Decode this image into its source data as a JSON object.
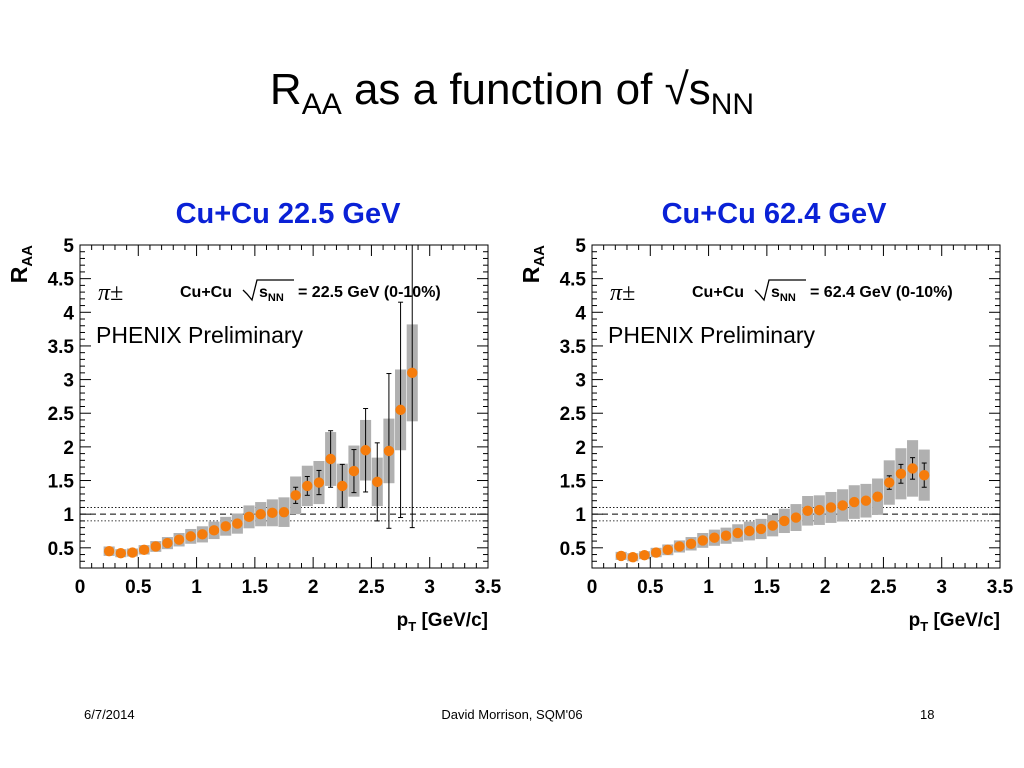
{
  "slide": {
    "title_main": "R",
    "title_sub1": "AA",
    "title_mid": " as a function of √s",
    "title_sub2": "NN"
  },
  "footer": {
    "date": "6/7/2014",
    "author": "David Morrison, SQM'06",
    "page": "18"
  },
  "colors": {
    "panel_title": "#0a21d6",
    "marker": "#f57c0c",
    "syst_band": "#b0b0b0"
  },
  "chart_data": [
    {
      "type": "scatter",
      "title": "Cu+Cu 22.5 GeV",
      "particle": "π±",
      "system_text": "Cu+Cu",
      "energy_text": "= 22.5 GeV (0-10%)",
      "prelim": "PHENIX Preliminary",
      "xlabel_main": "p",
      "xlabel_sub": "T",
      "xlabel_unit": " [GeV/c]",
      "ylabel_main": "R",
      "ylabel_sub": "AA",
      "xlim": [
        0,
        3.5
      ],
      "ylim": [
        0.2,
        5
      ],
      "xticks": [
        "0",
        "0.5",
        "1",
        "1.5",
        "2",
        "2.5",
        "3",
        "3.5"
      ],
      "yticks": [
        "0.5",
        "1",
        "1.5",
        "2",
        "2.5",
        "3",
        "3.5",
        "4",
        "4.5",
        "5"
      ],
      "reference_lines": {
        "dashed": 1.0,
        "dotted": [
          0.9,
          1.1
        ]
      },
      "x": [
        0.25,
        0.35,
        0.45,
        0.55,
        0.65,
        0.75,
        0.85,
        0.95,
        1.05,
        1.15,
        1.25,
        1.35,
        1.45,
        1.55,
        1.65,
        1.75,
        1.85,
        1.95,
        2.05,
        2.15,
        2.25,
        2.35,
        2.45,
        2.55,
        2.65,
        2.75,
        2.85
      ],
      "y": [
        0.45,
        0.42,
        0.43,
        0.47,
        0.52,
        0.57,
        0.62,
        0.67,
        0.7,
        0.76,
        0.82,
        0.86,
        0.96,
        1.0,
        1.02,
        1.03,
        1.28,
        1.42,
        1.47,
        1.82,
        1.42,
        1.64,
        1.95,
        1.48,
        1.94,
        2.55,
        3.1
      ],
      "stat": [
        0.02,
        0.02,
        0.02,
        0.02,
        0.02,
        0.02,
        0.02,
        0.02,
        0.02,
        0.03,
        0.03,
        0.03,
        0.03,
        0.04,
        0.04,
        0.06,
        0.12,
        0.14,
        0.18,
        0.42,
        0.32,
        0.32,
        0.62,
        0.58,
        1.15,
        1.6,
        2.3
      ],
      "syst": [
        0.07,
        0.06,
        0.06,
        0.07,
        0.08,
        0.09,
        0.1,
        0.11,
        0.12,
        0.13,
        0.14,
        0.15,
        0.17,
        0.18,
        0.2,
        0.22,
        0.28,
        0.3,
        0.32,
        0.4,
        0.33,
        0.38,
        0.45,
        0.36,
        0.48,
        0.6,
        0.72
      ]
    },
    {
      "type": "scatter",
      "title": "Cu+Cu 62.4 GeV",
      "particle": "π±",
      "system_text": "Cu+Cu",
      "energy_text": "= 62.4 GeV (0-10%)",
      "prelim": "PHENIX Preliminary",
      "xlabel_main": "p",
      "xlabel_sub": "T",
      "xlabel_unit": " [GeV/c]",
      "ylabel_main": "R",
      "ylabel_sub": "AA",
      "xlim": [
        0,
        3.5
      ],
      "ylim": [
        0.2,
        5
      ],
      "xticks": [
        "0",
        "0.5",
        "1",
        "1.5",
        "2",
        "2.5",
        "3",
        "3.5"
      ],
      "yticks": [
        "0.5",
        "1",
        "1.5",
        "2",
        "2.5",
        "3",
        "3.5",
        "4",
        "4.5",
        "5"
      ],
      "reference_lines": {
        "dashed": 1.0,
        "dotted": [
          0.9,
          1.1
        ]
      },
      "x": [
        0.25,
        0.35,
        0.45,
        0.55,
        0.65,
        0.75,
        0.85,
        0.95,
        1.05,
        1.15,
        1.25,
        1.35,
        1.45,
        1.55,
        1.65,
        1.75,
        1.85,
        1.95,
        2.05,
        2.15,
        2.25,
        2.35,
        2.45,
        2.55,
        2.65,
        2.75,
        2.85
      ],
      "y": [
        0.38,
        0.36,
        0.39,
        0.43,
        0.47,
        0.52,
        0.56,
        0.61,
        0.65,
        0.68,
        0.72,
        0.75,
        0.78,
        0.83,
        0.9,
        0.95,
        1.05,
        1.06,
        1.1,
        1.13,
        1.18,
        1.2,
        1.26,
        1.47,
        1.6,
        1.68,
        1.58
      ],
      "stat": [
        0.02,
        0.02,
        0.02,
        0.02,
        0.02,
        0.02,
        0.02,
        0.02,
        0.02,
        0.02,
        0.02,
        0.02,
        0.02,
        0.02,
        0.02,
        0.02,
        0.02,
        0.03,
        0.03,
        0.03,
        0.04,
        0.05,
        0.06,
        0.1,
        0.14,
        0.16,
        0.18
      ],
      "syst": [
        0.06,
        0.06,
        0.06,
        0.07,
        0.08,
        0.09,
        0.1,
        0.11,
        0.12,
        0.12,
        0.13,
        0.14,
        0.15,
        0.16,
        0.18,
        0.2,
        0.22,
        0.22,
        0.23,
        0.24,
        0.25,
        0.25,
        0.27,
        0.33,
        0.38,
        0.42,
        0.38
      ]
    }
  ]
}
